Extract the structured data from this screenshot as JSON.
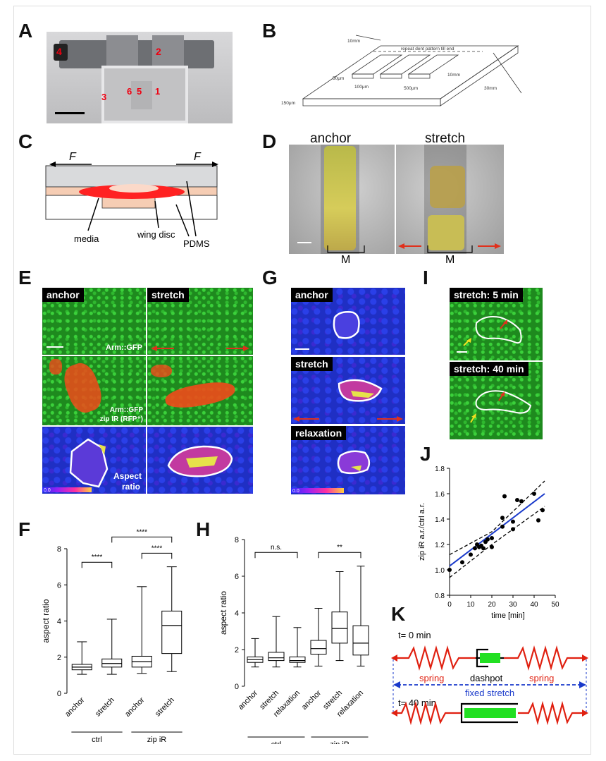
{
  "panels": {
    "A": "A",
    "B": "B",
    "C": "C",
    "D": "D",
    "E": "E",
    "F": "F",
    "G": "G",
    "H": "H",
    "I": "I",
    "J": "J",
    "K": "K"
  },
  "panelA": {
    "numbers": [
      "4",
      "2",
      "3",
      "6",
      "5",
      "1"
    ]
  },
  "panelB": {
    "repeat_text": "repeat dent pattern till end",
    "dim_10mm_top": "10mm",
    "dim_50um": "50μm",
    "dim_100um": "100μm",
    "dim_500um": "500μm",
    "dim_10mm_right": "10mm",
    "dim_30mm": "30mm",
    "dim_150um": "150μm"
  },
  "panelC": {
    "force_left": "F",
    "force_right": "F",
    "label_media": "media",
    "label_wing_disc": "wing disc",
    "label_pdms": "PDMS"
  },
  "panelD": {
    "anchor": "anchor",
    "stretch": "stretch",
    "m_left": "M",
    "m_right": "M"
  },
  "panelE": {
    "anchor": "anchor",
    "stretch": "stretch",
    "arm_gfp": "Arm::GFP",
    "arm_gfp2": "Arm::GFP",
    "zip_ir": "zip IR (RFP⁺)",
    "aspect": "Aspect",
    "ratio": "ratio",
    "scale_min": "0.0"
  },
  "panelG": {
    "anchor": "anchor",
    "stretch": "stretch",
    "relaxation": "relaxation",
    "scale_min": "0.0"
  },
  "panelI": {
    "t5": "stretch: 5 min",
    "t40": "stretch: 40 min"
  },
  "panelK": {
    "t0": "t= 0 min",
    "t40": "t= 40 min",
    "spring_left": "spring",
    "spring_right": "spring",
    "dashpot": "dashpot",
    "fixed_stretch": "fixed stretch",
    "colors": {
      "spring": "#e02010",
      "dashpot": "#22e022",
      "arrow": "#1a3acb"
    }
  },
  "chart_data": [
    {
      "panel": "F",
      "type": "box",
      "ylabel": "aspect ratio",
      "ylim": [
        0,
        8
      ],
      "yticks": [
        "0",
        "2",
        "4",
        "6",
        "8"
      ],
      "categories": [
        "anchor",
        "stretch",
        "anchor",
        "stretch"
      ],
      "groups": [
        {
          "name": "ctrl",
          "span": [
            0,
            1
          ]
        },
        {
          "name": "zip iR",
          "span": [
            2,
            3
          ]
        }
      ],
      "boxes": [
        {
          "min": 1.05,
          "q1": 1.3,
          "median": 1.45,
          "q3": 1.6,
          "max": 2.85
        },
        {
          "min": 1.05,
          "q1": 1.45,
          "median": 1.65,
          "q3": 1.9,
          "max": 4.1
        },
        {
          "min": 1.1,
          "q1": 1.45,
          "median": 1.75,
          "q3": 2.05,
          "max": 5.9
        },
        {
          "min": 1.2,
          "q1": 2.2,
          "median": 3.75,
          "q3": 4.55,
          "max": 7.0
        }
      ],
      "significance": [
        {
          "from": 0,
          "to": 1,
          "label": "****"
        },
        {
          "from": 1,
          "to": 3,
          "label": "****"
        },
        {
          "from": 2,
          "to": 3,
          "label": "****"
        }
      ]
    },
    {
      "panel": "H",
      "type": "box",
      "ylabel": "aspect ratio",
      "ylim": [
        0,
        8
      ],
      "yticks": [
        "0",
        "2",
        "4",
        "6",
        "8"
      ],
      "categories": [
        "anchor",
        "stretch",
        "relaxation",
        "anchor",
        "stretch",
        "relaxation"
      ],
      "groups": [
        {
          "name": "ctrl",
          "span": [
            0,
            2
          ]
        },
        {
          "name": "zip iR",
          "span": [
            3,
            5
          ]
        }
      ],
      "boxes": [
        {
          "min": 1.05,
          "q1": 1.3,
          "median": 1.45,
          "q3": 1.6,
          "max": 2.6
        },
        {
          "min": 1.05,
          "q1": 1.4,
          "median": 1.55,
          "q3": 1.85,
          "max": 3.8
        },
        {
          "min": 1.05,
          "q1": 1.3,
          "median": 1.4,
          "q3": 1.6,
          "max": 3.2
        },
        {
          "min": 1.1,
          "q1": 1.75,
          "median": 2.05,
          "q3": 2.5,
          "max": 4.25
        },
        {
          "min": 1.4,
          "q1": 2.35,
          "median": 3.15,
          "q3": 4.05,
          "max": 6.25
        },
        {
          "min": 1.1,
          "q1": 1.7,
          "median": 2.35,
          "q3": 3.3,
          "max": 6.55
        }
      ],
      "significance": [
        {
          "from": 0,
          "to": 2,
          "label": "n.s."
        },
        {
          "from": 3,
          "to": 5,
          "label": "**"
        }
      ]
    },
    {
      "panel": "J",
      "type": "scatter",
      "xlabel": "time [min]",
      "ylabel": "zip iR a.r./ctrl a.r.",
      "xlim": [
        0,
        50
      ],
      "ylim": [
        0.8,
        1.8
      ],
      "xticks": [
        "0",
        "10",
        "20",
        "30",
        "40",
        "50"
      ],
      "yticks": [
        "0.8",
        "1.0",
        "1.2",
        "1.4",
        "1.6",
        "1.8"
      ],
      "points": [
        [
          0,
          1.0
        ],
        [
          6,
          1.06
        ],
        [
          10,
          1.12
        ],
        [
          12,
          1.17
        ],
        [
          13,
          1.2
        ],
        [
          14,
          1.18
        ],
        [
          15,
          1.19
        ],
        [
          16,
          1.17
        ],
        [
          17,
          1.22
        ],
        [
          18,
          1.24
        ],
        [
          20,
          1.18
        ],
        [
          20,
          1.25
        ],
        [
          25,
          1.34
        ],
        [
          25,
          1.41
        ],
        [
          26,
          1.58
        ],
        [
          30,
          1.32
        ],
        [
          30,
          1.38
        ],
        [
          32,
          1.55
        ],
        [
          34,
          1.54
        ],
        [
          40,
          1.6
        ],
        [
          42,
          1.39
        ],
        [
          44,
          1.47
        ]
      ],
      "fit": {
        "x": [
          0,
          45
        ],
        "y": [
          1.03,
          1.6
        ]
      },
      "ci_upper": {
        "x": [
          0,
          20,
          45
        ],
        "y": [
          1.12,
          1.3,
          1.7
        ]
      },
      "ci_lower": {
        "x": [
          0,
          20,
          45
        ],
        "y": [
          0.94,
          1.2,
          1.5
        ]
      }
    }
  ]
}
